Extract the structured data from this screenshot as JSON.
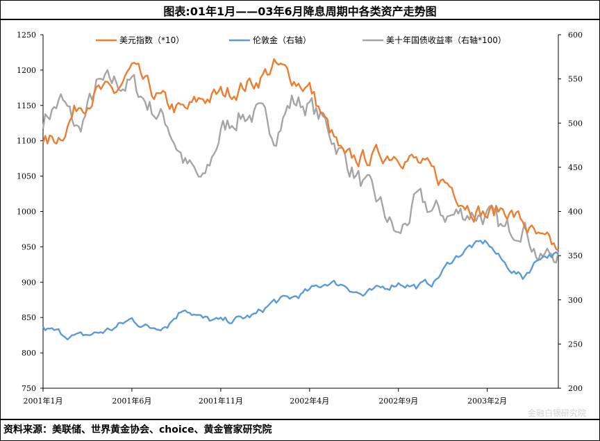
{
  "title": "图表:01年1月——03年6月降息周期中各类资产走势图",
  "source": "资料来源：美联储、世界黄金协会、choice、黄金管家研究院",
  "watermark": "金融白银研究院",
  "colors": {
    "usd": "#ED7D31",
    "gold": "#5B9BD5",
    "treasury": "#A5A5A5",
    "axis": "#000000"
  },
  "chart_data": {
    "type": "line",
    "title": "图表:01年1月——03年6月降息周期中各类资产走势图",
    "x_ticks": [
      "2001年1月",
      "2001年6月",
      "2001年11月",
      "2002年4月",
      "2002年9月",
      "2003年2月"
    ],
    "x_range": [
      "2001-01",
      "2003-06"
    ],
    "y_left": {
      "ticks": [
        750,
        800,
        850,
        900,
        950,
        1000,
        1050,
        1100,
        1150,
        1200,
        1250
      ],
      "range": [
        750,
        1250
      ]
    },
    "y_right": {
      "ticks": [
        200,
        250,
        300,
        350,
        400,
        450,
        500,
        550,
        600
      ],
      "range": [
        200,
        600
      ]
    },
    "legend_position": "top",
    "grid": false,
    "months": [
      "2001-01",
      "2001-02",
      "2001-03",
      "2001-04",
      "2001-05",
      "2001-06",
      "2001-07",
      "2001-08",
      "2001-09",
      "2001-10",
      "2001-11",
      "2001-12",
      "2002-01",
      "2002-02",
      "2002-03",
      "2002-04",
      "2002-05",
      "2002-06",
      "2002-07",
      "2002-08",
      "2002-09",
      "2002-10",
      "2002-11",
      "2002-12",
      "2003-01",
      "2003-02",
      "2003-03",
      "2003-04",
      "2003-05",
      "2003-06"
    ],
    "series": [
      {
        "name": "美元指数（*10）",
        "axis": "left",
        "values": [
          1090,
          1110,
          1150,
          1170,
          1165,
          1200,
          1170,
          1150,
          1140,
          1160,
          1165,
          1175,
          1185,
          1205,
          1190,
          1175,
          1120,
          1070,
          1075,
          1080,
          1085,
          1070,
          1050,
          1035,
          1010,
          995,
          1005,
          985,
          955,
          945
        ]
      },
      {
        "name": "伦敦金（右轴）",
        "axis": "right",
        "values": [
          267,
          262,
          258,
          262,
          268,
          278,
          268,
          273,
          292,
          278,
          275,
          278,
          283,
          298,
          302,
          310,
          320,
          317,
          305,
          312,
          320,
          315,
          320,
          345,
          360,
          365,
          340,
          325,
          350,
          352
        ]
      },
      {
        "name": "美十年国债收益率（右轴*100）",
        "axis": "right",
        "values": [
          505,
          525,
          490,
          540,
          545,
          545,
          520,
          500,
          455,
          430,
          490,
          510,
          510,
          490,
          525,
          520,
          495,
          460,
          430,
          405,
          370,
          410,
          400,
          395,
          400,
          395,
          375,
          390,
          345,
          355
        ]
      }
    ]
  }
}
